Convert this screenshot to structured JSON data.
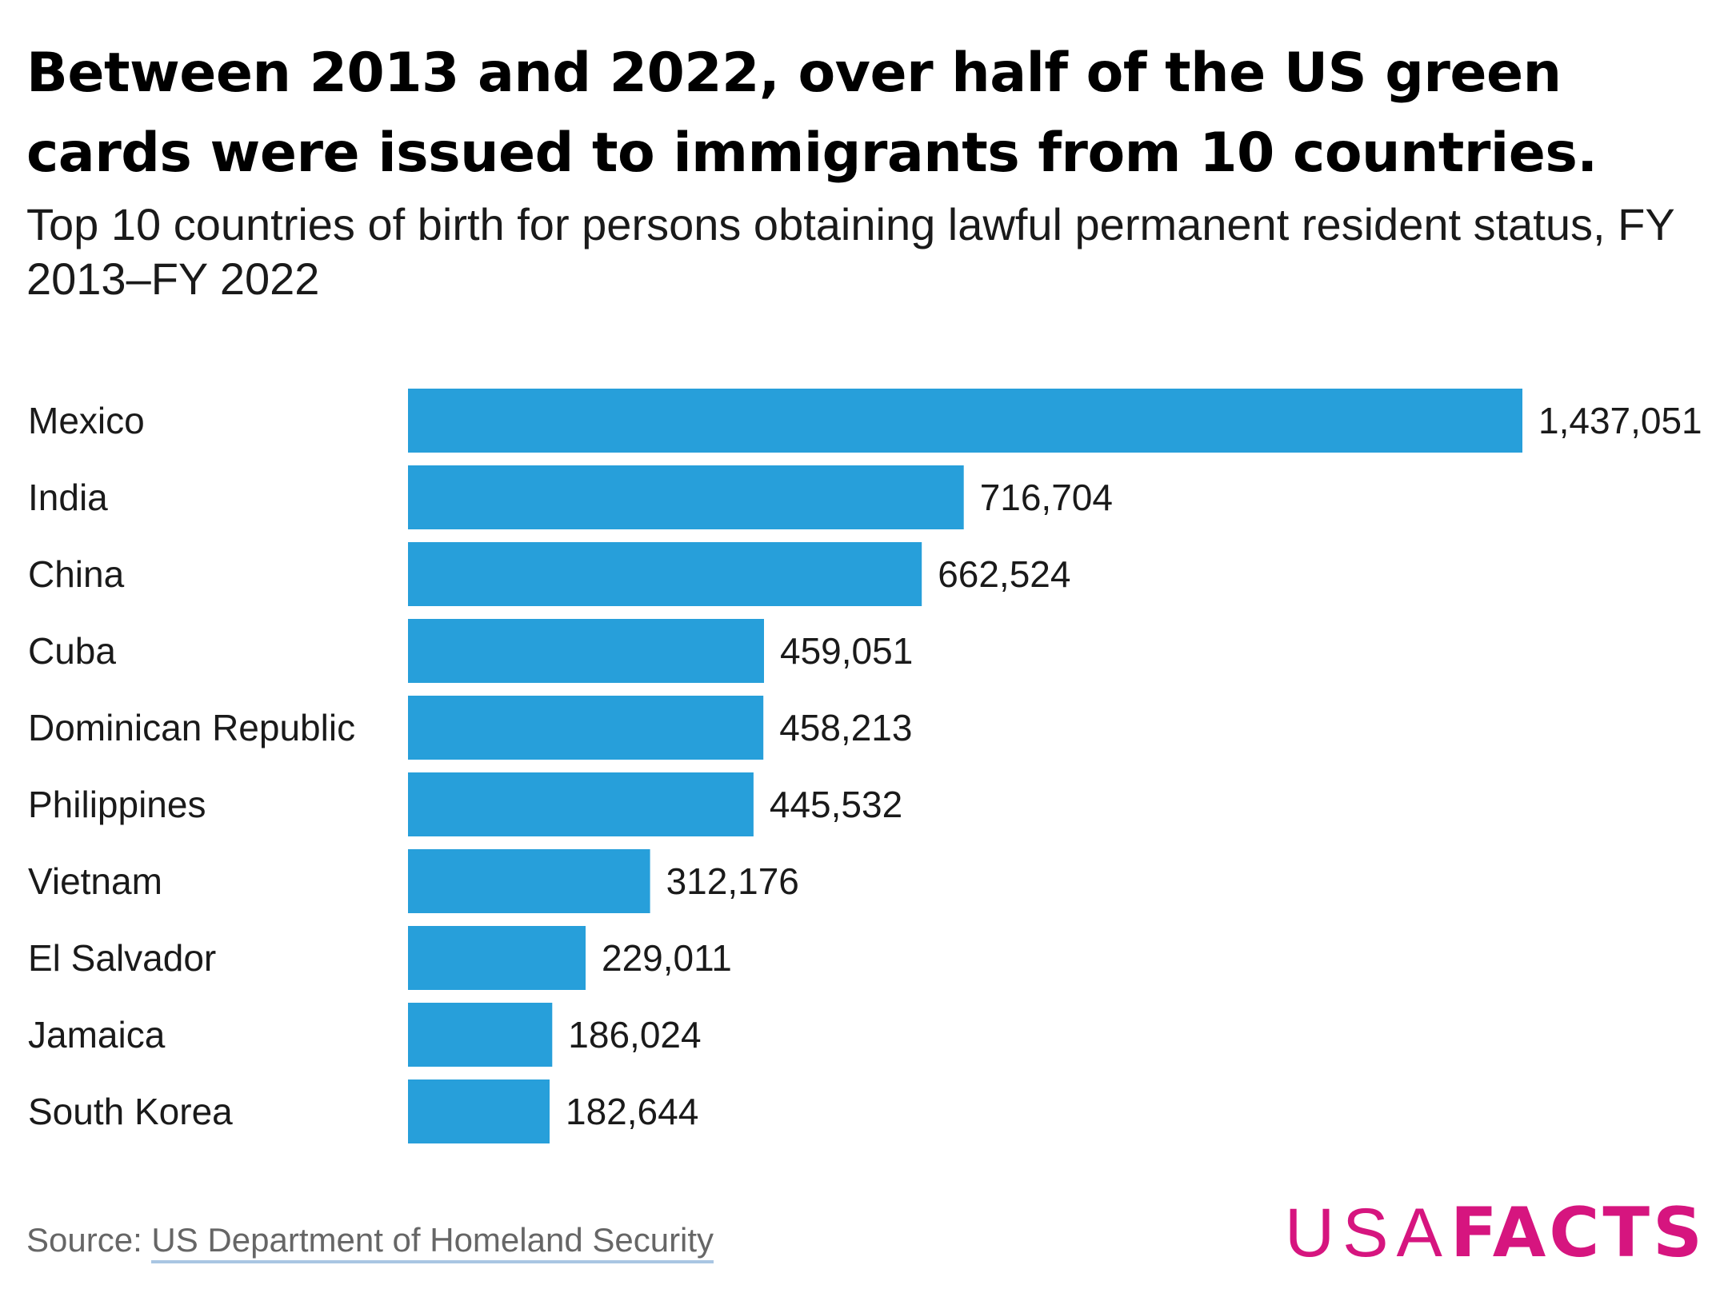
{
  "title": "Between 2013 and 2022, over half of the US green cards were issued to immigrants from 10 countries.",
  "subtitle": "Top 10 countries of birth for persons obtaining lawful permanent resident status, FY 2013–FY 2022",
  "source": {
    "prefix": "Source: ",
    "link_text": "US Department of Homeland Security"
  },
  "logo": {
    "part1": "USA",
    "part2": "FACTS",
    "color": "#d6157f"
  },
  "colors": {
    "bar": "#279fda"
  },
  "chart_data": {
    "type": "bar",
    "orientation": "horizontal",
    "title": "Between 2013 and 2022, over half of the US green cards were issued to immigrants from 10 countries.",
    "subtitle": "Top 10 countries of birth for persons obtaining lawful permanent resident status, FY 2013–FY 2022",
    "categories": [
      "Mexico",
      "India",
      "China",
      "Cuba",
      "Dominican Republic",
      "Philippines",
      "Vietnam",
      "El Salvador",
      "Jamaica",
      "South Korea"
    ],
    "values": [
      1437051,
      716704,
      662524,
      459051,
      458213,
      445532,
      312176,
      229011,
      186024,
      182644
    ],
    "value_labels": [
      "1,437,051",
      "716,704",
      "662,524",
      "459,051",
      "458,213",
      "445,532",
      "312,176",
      "229,011",
      "186,024",
      "182,644"
    ],
    "xlabel": "",
    "ylabel": "",
    "grid": false,
    "legend": "none"
  }
}
